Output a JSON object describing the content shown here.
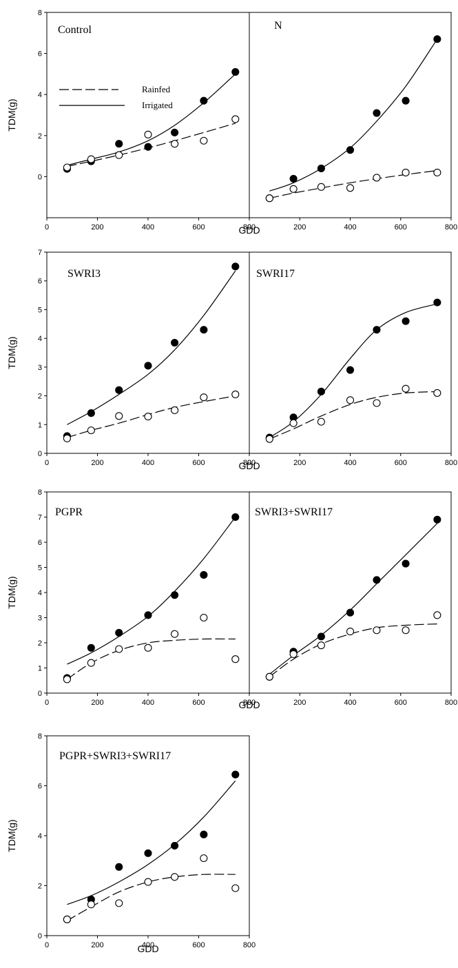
{
  "figure": {
    "ylabel": "TDM(g)",
    "xlabel": "GDD"
  },
  "legend": {
    "rainfed": "Rainfed",
    "irrigated": "Irrigated"
  },
  "chart_data": [
    {
      "type": "scatter",
      "title": "Control",
      "xlim": [
        0,
        800
      ],
      "ylim": [
        -2,
        8
      ],
      "yticks": [
        0,
        2,
        4,
        6,
        8
      ],
      "xlabel": "",
      "ylabel": "TDM(g)",
      "x": [
        80,
        175,
        285,
        400,
        505,
        620,
        745
      ],
      "series": [
        {
          "name": "Irrigated",
          "marker": "filled",
          "line": "solid",
          "values": [
            0.38,
            0.75,
            1.6,
            1.45,
            2.15,
            3.7,
            5.1
          ],
          "fit": [
            0.55,
            0.85,
            1.2,
            1.75,
            2.5,
            3.6,
            5.0
          ]
        },
        {
          "name": "Rainfed",
          "marker": "open",
          "line": "dashed",
          "values": [
            0.45,
            0.85,
            1.05,
            2.05,
            1.6,
            1.75,
            2.8
          ],
          "fit": [
            0.5,
            0.75,
            1.05,
            1.4,
            1.75,
            2.15,
            2.6
          ]
        }
      ]
    },
    {
      "type": "scatter",
      "title": "N",
      "xlim": [
        0,
        800
      ],
      "ylim": [
        -2,
        8
      ],
      "yticks": [],
      "xlabel": "",
      "ylabel": "",
      "x": [
        80,
        175,
        285,
        400,
        505,
        620,
        745
      ],
      "series": [
        {
          "name": "Irrigated",
          "marker": "filled",
          "line": "solid",
          "values": [
            -1.05,
            -0.1,
            0.4,
            1.3,
            3.1,
            3.7,
            6.7
          ],
          "fit": [
            -0.7,
            -0.3,
            0.4,
            1.4,
            2.7,
            4.4,
            6.7
          ]
        },
        {
          "name": "Rainfed",
          "marker": "open",
          "line": "dashed",
          "values": [
            -1.05,
            -0.6,
            -0.5,
            -0.55,
            -0.05,
            0.2,
            0.2
          ],
          "fit": [
            -1.05,
            -0.8,
            -0.55,
            -0.3,
            -0.1,
            0.1,
            0.3
          ]
        }
      ]
    },
    {
      "type": "scatter",
      "title": "SWRI3",
      "xlim": [
        0,
        800
      ],
      "ylim": [
        0,
        7
      ],
      "yticks": [
        0,
        1,
        2,
        3,
        4,
        5,
        6,
        7
      ],
      "xlabel": "",
      "ylabel": "TDM(g)",
      "x": [
        80,
        175,
        285,
        400,
        505,
        620,
        745
      ],
      "series": [
        {
          "name": "Irrigated",
          "marker": "filled",
          "line": "solid",
          "values": [
            0.6,
            1.4,
            2.2,
            3.05,
            3.85,
            4.3,
            6.5
          ],
          "fit": [
            1.0,
            1.45,
            2.05,
            2.75,
            3.6,
            4.8,
            6.35
          ]
        },
        {
          "name": "Rainfed",
          "marker": "open",
          "line": "dashed",
          "values": [
            0.52,
            0.8,
            1.3,
            1.28,
            1.5,
            1.95,
            2.05
          ],
          "fit": [
            0.55,
            0.8,
            1.05,
            1.35,
            1.6,
            1.8,
            2.0
          ]
        }
      ]
    },
    {
      "type": "scatter",
      "title": "SWRI17",
      "xlim": [
        0,
        800
      ],
      "ylim": [
        0,
        7
      ],
      "yticks": [],
      "xlabel": "",
      "ylabel": "",
      "x": [
        80,
        175,
        285,
        400,
        505,
        620,
        745
      ],
      "series": [
        {
          "name": "Irrigated",
          "marker": "filled",
          "line": "solid",
          "values": [
            0.55,
            1.25,
            2.15,
            2.9,
            4.3,
            4.6,
            5.25
          ],
          "fit": [
            0.55,
            1.1,
            2.05,
            3.3,
            4.3,
            4.9,
            5.2
          ]
        },
        {
          "name": "Rainfed",
          "marker": "open",
          "line": "dashed",
          "values": [
            0.5,
            1.05,
            1.1,
            1.85,
            1.75,
            2.25,
            2.1
          ],
          "fit": [
            0.5,
            0.85,
            1.3,
            1.7,
            1.95,
            2.1,
            2.15
          ]
        }
      ]
    },
    {
      "type": "scatter",
      "title": "PGPR",
      "xlim": [
        0,
        800
      ],
      "ylim": [
        0,
        8
      ],
      "yticks": [
        0,
        1,
        2,
        3,
        4,
        5,
        6,
        7,
        8
      ],
      "xlabel": "",
      "ylabel": "TDM(g)",
      "x": [
        80,
        175,
        285,
        400,
        505,
        620,
        745
      ],
      "series": [
        {
          "name": "Irrigated",
          "marker": "filled",
          "line": "solid",
          "values": [
            0.6,
            1.8,
            2.4,
            3.1,
            3.9,
            4.7,
            7.0
          ],
          "fit": [
            1.15,
            1.6,
            2.25,
            3.05,
            4.05,
            5.35,
            7.0
          ]
        },
        {
          "name": "Rainfed",
          "marker": "open",
          "line": "dashed",
          "values": [
            0.55,
            1.2,
            1.75,
            1.8,
            2.35,
            3.0,
            1.35
          ],
          "fit": [
            0.55,
            1.2,
            1.7,
            2.0,
            2.1,
            2.15,
            2.15
          ]
        }
      ]
    },
    {
      "type": "scatter",
      "title": "SWRI3+SWRI17",
      "xlim": [
        0,
        800
      ],
      "ylim": [
        0,
        8
      ],
      "yticks": [],
      "xlabel": "",
      "ylabel": "",
      "x": [
        80,
        175,
        285,
        400,
        505,
        620,
        745
      ],
      "series": [
        {
          "name": "Irrigated",
          "marker": "filled",
          "line": "solid",
          "values": [
            0.65,
            1.65,
            2.25,
            3.2,
            4.5,
            5.15,
            6.9
          ],
          "fit": [
            0.75,
            1.5,
            2.3,
            3.3,
            4.35,
            5.5,
            6.75
          ]
        },
        {
          "name": "Rainfed",
          "marker": "open",
          "line": "dashed",
          "values": [
            0.65,
            1.55,
            1.9,
            2.45,
            2.5,
            2.5,
            3.1
          ],
          "fit": [
            0.65,
            1.35,
            1.95,
            2.35,
            2.6,
            2.7,
            2.75
          ]
        }
      ]
    },
    {
      "type": "scatter",
      "title": "PGPR+SWRI3+SWRI17",
      "xlim": [
        0,
        800
      ],
      "ylim": [
        0,
        8
      ],
      "yticks": [
        0,
        2,
        4,
        6,
        8
      ],
      "xlabel": "",
      "ylabel": "TDM(g)",
      "x": [
        80,
        175,
        285,
        400,
        505,
        620,
        745
      ],
      "series": [
        {
          "name": "Irrigated",
          "marker": "filled",
          "line": "solid",
          "values": [
            0.65,
            1.45,
            2.75,
            3.3,
            3.6,
            4.05,
            6.45
          ],
          "fit": [
            1.25,
            1.6,
            2.15,
            2.85,
            3.65,
            4.75,
            6.2
          ]
        },
        {
          "name": "Rainfed",
          "marker": "open",
          "line": "dashed",
          "values": [
            0.65,
            1.25,
            1.3,
            2.15,
            2.35,
            3.1,
            1.9
          ],
          "fit": [
            0.6,
            1.15,
            1.75,
            2.15,
            2.35,
            2.45,
            2.45
          ]
        }
      ]
    }
  ]
}
